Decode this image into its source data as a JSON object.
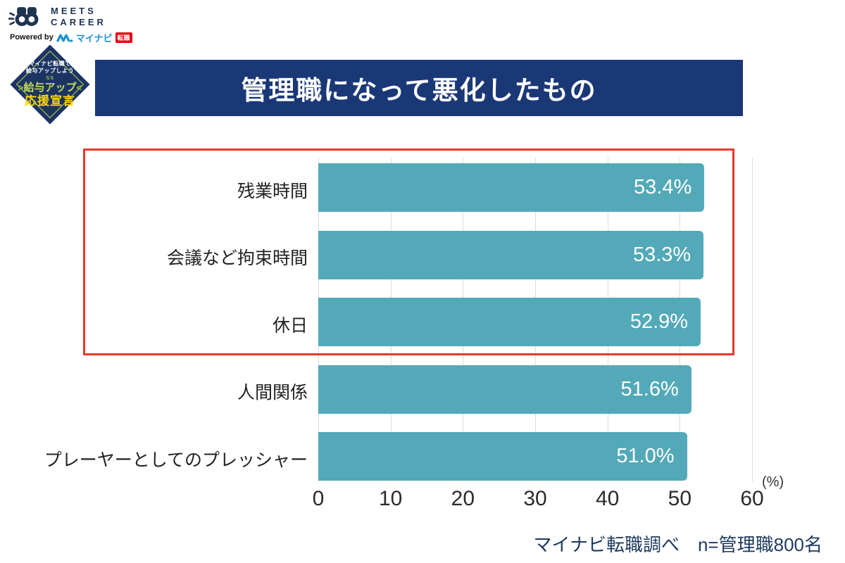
{
  "logo": {
    "brand_line1": "MEETS",
    "brand_line2": "CAREER",
    "powered_by": "Powered by",
    "mynavi": "マイナビ",
    "tenshoku": "転職"
  },
  "badge": {
    "top_line1": "マイナビ転職で",
    "top_line2": "給与アップしよう",
    "arrows": "⇅⇅",
    "main_left": ">",
    "main": "給与アップ",
    "main_right": "<",
    "sub": "応援宣言"
  },
  "header": {
    "title": "管理職になって悪化したもの"
  },
  "chart_data": {
    "type": "bar",
    "orientation": "horizontal",
    "title": "管理職になって悪化したもの",
    "categories": [
      "残業時間",
      "会議など拘束時間",
      "休日",
      "人間関係",
      "プレーヤーとしてのプレッシャー"
    ],
    "values": [
      53.4,
      53.3,
      52.9,
      51.6,
      51.0
    ],
    "value_labels": [
      "53.4%",
      "53.3%",
      "52.9%",
      "51.6%",
      "51.0%"
    ],
    "x_ticks": [
      "0",
      "10",
      "20",
      "30",
      "40",
      "50",
      "60"
    ],
    "xlim": [
      0,
      60
    ],
    "unit_label": "(%)",
    "bar_color": "#53a9b7",
    "grid": true,
    "highlighted_rows": [
      0,
      1,
      2
    ],
    "highlight_color": "#e8392c"
  },
  "footer": {
    "source": "マイナビ転職調べ　n=管理職800名"
  }
}
